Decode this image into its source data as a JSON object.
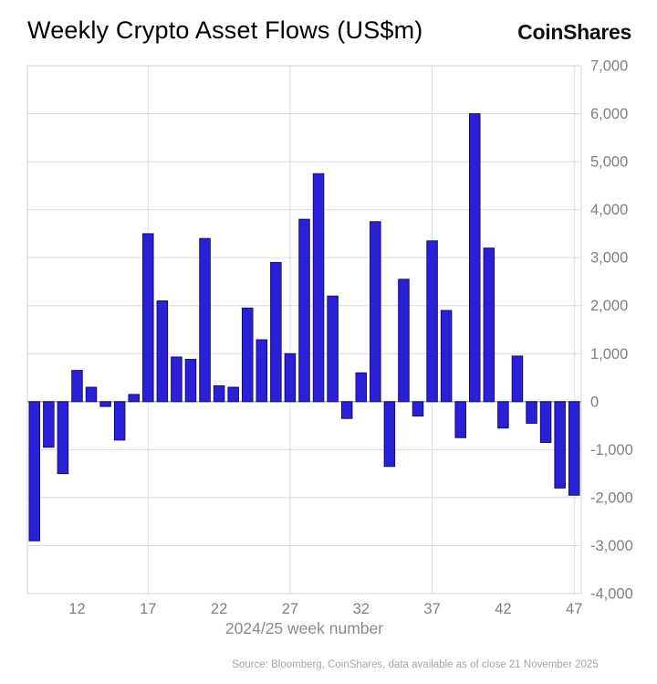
{
  "header": {
    "title": "Weekly Crypto Asset Flows (US$m)",
    "logo": "CoinShares"
  },
  "chart_data": {
    "type": "bar",
    "title": "Weekly Crypto Asset Flows (US$m)",
    "xlabel": "2024/25 week number",
    "ylabel": "",
    "ylim": [
      -4000,
      7000
    ],
    "grid": true,
    "legend": "none",
    "bar_color": "#2b20d9",
    "bar_stroke": "#140f62",
    "grid_color": "#dcdcdc",
    "zero_line_color": "#999999",
    "weeks": [
      9,
      10,
      11,
      12,
      13,
      14,
      15,
      16,
      17,
      18,
      19,
      20,
      21,
      22,
      23,
      24,
      25,
      26,
      27,
      28,
      29,
      30,
      31,
      32,
      33,
      34,
      35,
      36,
      37,
      38,
      39,
      40,
      41,
      42,
      43,
      44,
      45,
      46,
      47
    ],
    "values": [
      -2900,
      -950,
      -1500,
      650,
      300,
      -100,
      -800,
      150,
      3500,
      2100,
      930,
      880,
      3400,
      330,
      300,
      1950,
      1290,
      2900,
      1000,
      3800,
      4750,
      2200,
      -350,
      600,
      3750,
      -1350,
      2550,
      -300,
      3350,
      1900,
      -750,
      6000,
      3200,
      -550,
      950,
      -450,
      -850,
      -1800,
      -1950
    ],
    "x_ticks": [
      12,
      17,
      22,
      27,
      32,
      37,
      42,
      47
    ],
    "y_ticks": [
      -4000,
      -3000,
      -2000,
      -1000,
      0,
      1000,
      2000,
      3000,
      4000,
      5000,
      6000,
      7000
    ],
    "vgrid_weeks": [
      17,
      27,
      37,
      47
    ]
  },
  "footer": {
    "source": "Source: Bloomberg, CoinShares, data available as of close 21 November 2025"
  }
}
